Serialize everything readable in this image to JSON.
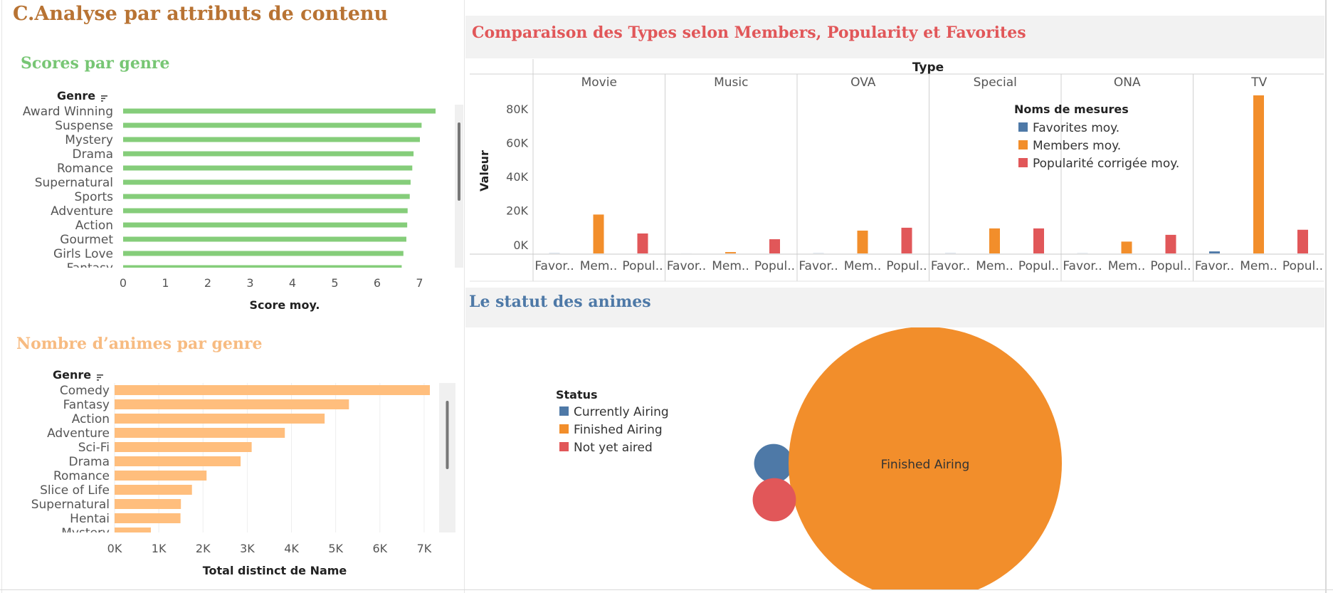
{
  "dashboard": {
    "title": "C.Analyse par attributs de contenu"
  },
  "chart_data": [
    {
      "type": "bar",
      "orientation": "horizontal",
      "title": "Scores par genre",
      "ylabel": "Genre",
      "xlabel": "Score moy.",
      "xlim": [
        0,
        7.8
      ],
      "xticks": [
        "0",
        "1",
        "2",
        "3",
        "4",
        "5",
        "6",
        "7"
      ],
      "categories": [
        "Award Winning",
        "Suspense",
        "Mystery",
        "Drama",
        "Romance",
        "Supernatural",
        "Sports",
        "Adventure",
        "Action",
        "Gourmet",
        "Girls Love",
        "Fantasy"
      ],
      "values": [
        7.38,
        7.05,
        7.01,
        6.86,
        6.83,
        6.79,
        6.77,
        6.72,
        6.71,
        6.69,
        6.62,
        6.58
      ],
      "color": "#85cd7a",
      "grid": false
    },
    {
      "type": "bar",
      "orientation": "horizontal",
      "title": "Nombre d’animes par genre",
      "ylabel": "Genre",
      "xlabel": "Total distinct de Name",
      "xlim": [
        0,
        7500
      ],
      "xticks": [
        "0K",
        "1K",
        "2K",
        "3K",
        "4K",
        "5K",
        "6K",
        "7K"
      ],
      "categories": [
        "Comedy",
        "Fantasy",
        "Action",
        "Adventure",
        "Sci-Fi",
        "Drama",
        "Romance",
        "Slice of Life",
        "Supernatural",
        "Hentai",
        "Mystery"
      ],
      "values": [
        7130,
        5300,
        4750,
        3850,
        3100,
        2850,
        2080,
        1750,
        1500,
        1490,
        820
      ],
      "color": "#ffbe7d",
      "grid": true
    },
    {
      "type": "bar",
      "title": "Comparaison des Types selon Members, Popularity et Favorites",
      "xlabel": "Type",
      "ylabel": "Valeur",
      "ylim": [
        -2000,
        95000
      ],
      "yticks": [
        "0K",
        "20K",
        "40K",
        "60K",
        "80K"
      ],
      "categories": [
        "Movie",
        "Music",
        "OVA",
        "Special",
        "ONA",
        "TV"
      ],
      "sub_labels": [
        "Favor..",
        "Mem..",
        "Popul.."
      ],
      "legend_title": "Noms de mesures",
      "legend_position": "top-right",
      "series": [
        {
          "name": "Favorites moy.",
          "color": "#4e79a7",
          "values": [
            100,
            20,
            80,
            90,
            60,
            1200
          ]
        },
        {
          "name": "Members moy.",
          "color": "#f28e2b",
          "values": [
            23000,
            800,
            13500,
            14800,
            7000,
            93500
          ]
        },
        {
          "name": "Popularité corrigée moy.",
          "color": "#e15759",
          "values": [
            11800,
            8400,
            15200,
            14800,
            11000,
            14000
          ]
        }
      ]
    },
    {
      "type": "packed-bubble",
      "title": "Le statut des animes",
      "legend_title": "Status",
      "legend_position": "left",
      "categories": [
        "Currently Airing",
        "Finished Airing",
        "Not yet aired"
      ],
      "colors": [
        "#4e79a7",
        "#f28e2b",
        "#e15759"
      ],
      "relative_size": [
        0.0195,
        0.9565,
        0.024
      ],
      "bubble_label": "Finished Airing"
    }
  ]
}
